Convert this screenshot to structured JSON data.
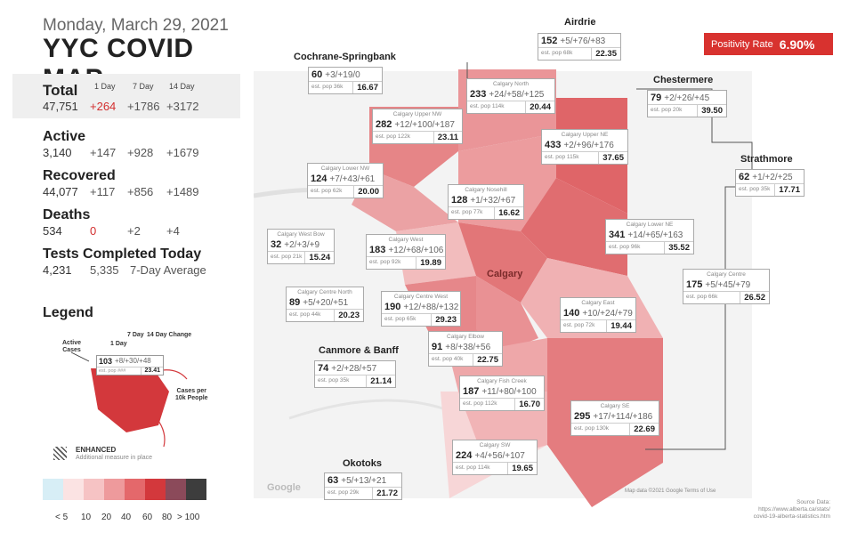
{
  "header": {
    "date": "Monday, March 29, 2021",
    "title": "YYC COVID MAP"
  },
  "positivity": {
    "label": "Positivity Rate",
    "value": "6.90%"
  },
  "stats": {
    "col_headers": [
      "1 Day",
      "7 Day",
      "14 Day"
    ],
    "total": {
      "label": "Total",
      "value": "47,751",
      "d1": "+264",
      "d7": "+1786",
      "d14": "+3172"
    },
    "active": {
      "label": "Active",
      "value": "3,140",
      "d1": "+147",
      "d7": "+928",
      "d14": "+1679"
    },
    "recovered": {
      "label": "Recovered",
      "value": "44,077",
      "d1": "+117",
      "d7": "+856",
      "d14": "+1489"
    },
    "deaths": {
      "label": "Deaths",
      "value": "534",
      "d1": "0",
      "d7": "+2",
      "d14": "+4"
    },
    "tests": {
      "label": "Tests Completed Today",
      "value": "4,231",
      "avg": "5,335",
      "avg_label": "7-Day Average"
    }
  },
  "legend": {
    "title": "Legend",
    "active_cases": "Active\nCases",
    "one_day": "1 Day",
    "seven_day": "7 Day",
    "fourteen_day": "14 Day Change",
    "sample_n": "103",
    "sample_changes": "+8/+30/+48",
    "sample_pop": "est. pop ###",
    "sample_rate": "23.41",
    "per10k": "Cases per\n10k People",
    "enhanced": "ENHANCED",
    "enhanced_sub": "Additional measure in place",
    "scale_colors": [
      "#d7eef6",
      "#fbe3e3",
      "#f6c3c4",
      "#ee9a9c",
      "#e4686b",
      "#d3383c",
      "#8b4a5a",
      "#3d3d3d"
    ],
    "scale_labels": [
      "< 5",
      "10",
      "20",
      "40",
      "60",
      "80",
      "> 100"
    ]
  },
  "map": {
    "city_label": "Calgary",
    "google": "Google",
    "map_data": "Map data ©2021 Google   Terms of Use",
    "source": "Source Data:\nhttps://www.alberta.ca/stats/\ncovid-19-alberta-statistics.htm",
    "regions": [
      {
        "name": "Airdrie",
        "n": "152",
        "c": "+5/+76/+83",
        "pop": "est. pop 68k",
        "r": "22.35"
      },
      {
        "name": "Cochrane-Springbank",
        "n": "60",
        "c": "+3/+19/0",
        "pop": "est. pop 36k",
        "r": "16.67"
      },
      {
        "name": "Chestermere",
        "n": "79",
        "c": "+2/+26/+45",
        "pop": "est. pop 20k",
        "r": "39.50"
      },
      {
        "name": "Strathmore",
        "n": "62",
        "c": "+1/+2/+25",
        "pop": "est. pop 35k",
        "r": "17.71"
      },
      {
        "name": "Canmore & Banff",
        "n": "74",
        "c": "+2/+28/+57",
        "pop": "est. pop 35k",
        "r": "21.14"
      },
      {
        "name": "Okotoks",
        "n": "63",
        "c": "+5/+13/+21",
        "pop": "est. pop 29k",
        "r": "21.72"
      },
      {
        "name": "Calgary North",
        "n": "233",
        "c": "+24/+58/+125",
        "pop": "est. pop 114k",
        "r": "20.44"
      },
      {
        "name": "Calgary Upper NW",
        "n": "282",
        "c": "+12/+100/+187",
        "pop": "est. pop 122k",
        "r": "23.11"
      },
      {
        "name": "Calgary Upper NE",
        "n": "433",
        "c": "+2/+96/+176",
        "pop": "est. pop 115k",
        "r": "37.65"
      },
      {
        "name": "Calgary Lower NW",
        "n": "124",
        "c": "+7/+43/+61",
        "pop": "est. pop 62k",
        "r": "20.00"
      },
      {
        "name": "Calgary Nosehill",
        "n": "128",
        "c": "+1/+32/+67",
        "pop": "est. pop 77k",
        "r": "16.62"
      },
      {
        "name": "Calgary West Bow",
        "n": "32",
        "c": "+2/+3/+9",
        "pop": "est. pop 21k",
        "r": "15.24"
      },
      {
        "name": "Calgary West",
        "n": "183",
        "c": "+12/+68/+106",
        "pop": "est. pop 92k",
        "r": "19.89"
      },
      {
        "name": "Calgary Lower NE",
        "n": "341",
        "c": "+14/+65/+163",
        "pop": "est. pop 96k",
        "r": "35.52"
      },
      {
        "name": "Calgary Centre",
        "n": "175",
        "c": "+5/+45/+79",
        "pop": "est. pop 66k",
        "r": "26.52"
      },
      {
        "name": "Calgary Centre North",
        "n": "89",
        "c": "+5/+20/+51",
        "pop": "est. pop 44k",
        "r": "20.23"
      },
      {
        "name": "Calgary Centre West",
        "n": "190",
        "c": "+12/+88/+132",
        "pop": "est. pop 65k",
        "r": "29.23"
      },
      {
        "name": "Calgary East",
        "n": "140",
        "c": "+10/+24/+79",
        "pop": "est. pop 72k",
        "r": "19.44"
      },
      {
        "name": "Calgary Elbow",
        "n": "91",
        "c": "+8/+38/+56",
        "pop": "est. pop 40k",
        "r": "22.75"
      },
      {
        "name": "Calgary Fish Creek",
        "n": "187",
        "c": "+11/+80/+100",
        "pop": "est. pop 112k",
        "r": "16.70"
      },
      {
        "name": "Calgary SE",
        "n": "295",
        "c": "+17/+114/+186",
        "pop": "est. pop 130k",
        "r": "22.69"
      },
      {
        "name": "Calgary SW",
        "n": "224",
        "c": "+4/+56/+107",
        "pop": "est. pop 114k",
        "r": "19.65"
      }
    ]
  }
}
